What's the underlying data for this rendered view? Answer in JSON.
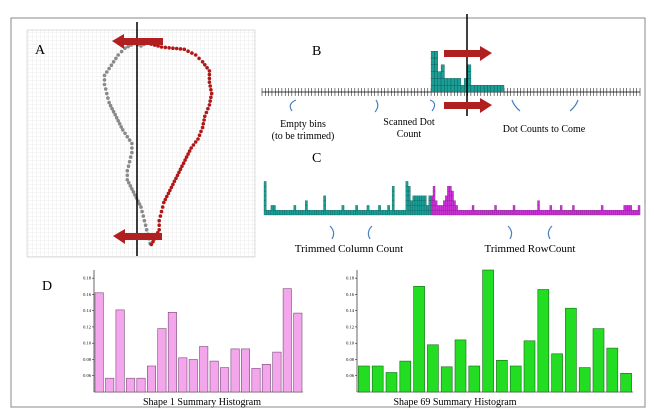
{
  "panels": {
    "a": {
      "letter": "A"
    },
    "b": {
      "letter": "B",
      "label_empty_line1": "Empty bins",
      "label_empty_line2": "(to be trimmed)",
      "label_scanned_line1": "Scanned Dot",
      "label_scanned_line2": "Count",
      "label_to_come": "Dot Counts to Come"
    },
    "c": {
      "letter": "C",
      "label_column": "Trimmed Column Count",
      "label_row": "Trimmed RowCount"
    },
    "d": {
      "letter": "D"
    }
  },
  "colors": {
    "gray_dots": "#8a8a8a",
    "red_dots": "#b01818",
    "arrow": "#b02020",
    "teal": "#1a9e96",
    "magenta": "#cc33d6",
    "pink": "#f3a6ec",
    "green": "#22dd22",
    "curve_arrow": "#4a7fbf"
  },
  "shape_points_gray": [
    [
      0.54,
      0.05
    ],
    [
      0.5,
      0.07
    ],
    [
      0.47,
      0.06
    ],
    [
      0.43,
      0.08
    ],
    [
      0.4,
      0.11
    ],
    [
      0.38,
      0.14
    ],
    [
      0.36,
      0.17
    ],
    [
      0.34,
      0.2
    ],
    [
      0.34,
      0.24
    ],
    [
      0.35,
      0.28
    ],
    [
      0.36,
      0.32
    ],
    [
      0.38,
      0.36
    ],
    [
      0.4,
      0.4
    ],
    [
      0.42,
      0.44
    ],
    [
      0.44,
      0.47
    ],
    [
      0.46,
      0.5
    ],
    [
      0.46,
      0.54
    ],
    [
      0.45,
      0.58
    ],
    [
      0.44,
      0.62
    ],
    [
      0.44,
      0.66
    ],
    [
      0.46,
      0.7
    ],
    [
      0.48,
      0.74
    ],
    [
      0.5,
      0.78
    ],
    [
      0.51,
      0.82
    ],
    [
      0.52,
      0.86
    ],
    [
      0.53,
      0.9
    ],
    [
      0.54,
      0.94
    ]
  ],
  "shape_points_red": [
    [
      0.545,
      0.062
    ],
    [
      0.59,
      0.075
    ],
    [
      0.64,
      0.08
    ],
    [
      0.69,
      0.085
    ],
    [
      0.74,
      0.11
    ],
    [
      0.77,
      0.14
    ],
    [
      0.8,
      0.18
    ],
    [
      0.8,
      0.23
    ],
    [
      0.81,
      0.28
    ],
    [
      0.8,
      0.33
    ],
    [
      0.78,
      0.38
    ],
    [
      0.77,
      0.43
    ],
    [
      0.75,
      0.48
    ],
    [
      0.72,
      0.52
    ],
    [
      0.7,
      0.56
    ],
    [
      0.68,
      0.6
    ],
    [
      0.66,
      0.64
    ],
    [
      0.64,
      0.68
    ],
    [
      0.62,
      0.72
    ],
    [
      0.6,
      0.76
    ],
    [
      0.59,
      0.8
    ],
    [
      0.58,
      0.84
    ],
    [
      0.58,
      0.88
    ],
    [
      0.56,
      0.92
    ],
    [
      0.545,
      0.945
    ]
  ],
  "scanned_columns": [
    0,
    0,
    0,
    0,
    0,
    0,
    0,
    0,
    0,
    0,
    0,
    0,
    0,
    0,
    0,
    0,
    0,
    0,
    0,
    0,
    0,
    0,
    0,
    0,
    0,
    0,
    0,
    0,
    0,
    0,
    0,
    0,
    0,
    0,
    0,
    0,
    0,
    0,
    0,
    0,
    0,
    0,
    0,
    0,
    0,
    0,
    0,
    0,
    0,
    0,
    0,
    6,
    6,
    3,
    4,
    2,
    2,
    2,
    2,
    2,
    1,
    2,
    4,
    1,
    1,
    1,
    1,
    1,
    1,
    1,
    1,
    1,
    1,
    0,
    0,
    0,
    0,
    0,
    0,
    0,
    0,
    0,
    0,
    0,
    0,
    0,
    0,
    0,
    0,
    0,
    0,
    0,
    0,
    0,
    0,
    0,
    0,
    0,
    0,
    0,
    0,
    0,
    0,
    0,
    0,
    0,
    0,
    0,
    0,
    0,
    0,
    0,
    0,
    0
  ],
  "trimmed_columns": [
    7,
    1,
    1,
    2,
    2,
    1,
    1,
    1,
    1,
    1,
    1,
    1,
    1,
    2,
    1,
    1,
    1,
    1,
    3,
    1,
    1,
    1,
    1,
    1,
    1,
    1,
    4,
    1,
    1,
    1,
    1,
    1,
    1,
    1,
    2,
    1,
    1,
    1,
    1,
    1,
    2,
    1,
    1,
    1,
    1,
    2,
    1,
    1,
    1,
    1,
    2,
    1,
    1,
    1,
    2,
    1,
    6,
    1,
    1,
    1,
    1,
    1,
    7,
    6,
    3,
    4,
    4,
    4,
    4,
    4,
    4,
    2,
    4
  ],
  "trimmed_rows": [
    4,
    6,
    3,
    2,
    2,
    2,
    3,
    4,
    6,
    6,
    5,
    3,
    2,
    1,
    1,
    1,
    1,
    1,
    1,
    1,
    2,
    1,
    1,
    1,
    1,
    1,
    1,
    1,
    1,
    1,
    1,
    2,
    1,
    1,
    1,
    1,
    1,
    1,
    1,
    1,
    2,
    1,
    1,
    1,
    1,
    1,
    1,
    1,
    1,
    1,
    1,
    1,
    3,
    1,
    1,
    1,
    1,
    1,
    2,
    1,
    1,
    1,
    1,
    2,
    1,
    1,
    1,
    1,
    1,
    2,
    1,
    1,
    1,
    1,
    1,
    1,
    1,
    1,
    1,
    1,
    1,
    1,
    1,
    2,
    1,
    1,
    1,
    1,
    1,
    1,
    1,
    1,
    1,
    1,
    2,
    2,
    2,
    2,
    1,
    1,
    1,
    2
  ],
  "chart_data": [
    {
      "type": "bar",
      "title": "Shape 1 Summary Histogram",
      "ylim": [
        0.04,
        0.19
      ],
      "yticks": [
        "0.06",
        "0.08",
        "0.10",
        "0.12",
        "0.14",
        "0.16",
        "0.18"
      ],
      "values": [
        0.162,
        0.057,
        0.141,
        0.057,
        0.057,
        0.072,
        0.118,
        0.138,
        0.082,
        0.08,
        0.096,
        0.078,
        0.07,
        0.093,
        0.093,
        0.069,
        0.074,
        0.089,
        0.167,
        0.137
      ]
    },
    {
      "type": "bar",
      "title": "Shape 69 Summary Histogram",
      "ylim": [
        0.04,
        0.19
      ],
      "yticks": [
        "0.06",
        "0.08",
        "0.10",
        "0.12",
        "0.14",
        "0.16",
        "0.18"
      ],
      "values": [
        0.072,
        0.072,
        0.064,
        0.078,
        0.17,
        0.098,
        0.071,
        0.104,
        0.072,
        0.19,
        0.079,
        0.072,
        0.103,
        0.166,
        0.087,
        0.143,
        0.07,
        0.118,
        0.094,
        0.063
      ]
    }
  ]
}
